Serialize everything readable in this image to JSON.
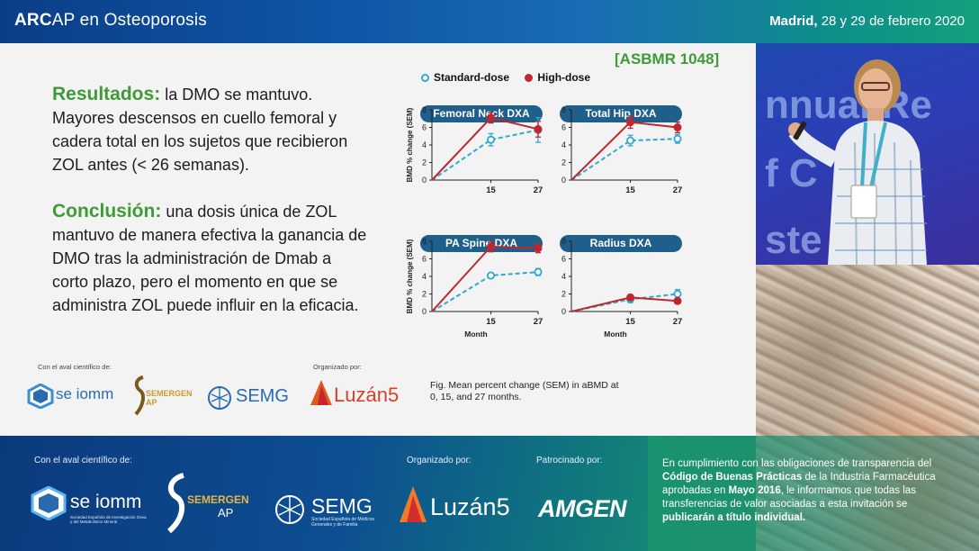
{
  "top_banner": {
    "title_bold": "ARC",
    "title_rest": "AP en Osteoporosis",
    "date_city": "Madrid,",
    "date_rest": " 28 y 29 de febrero 2020"
  },
  "slide": {
    "results_heading": "Resultados:",
    "results_text": " la DMO se mantuvo. Mayores descensos en cuello femoral y cadera total en los sujetos que recibieron ZOL antes (< 26 semanas).",
    "conclusion_heading": "Conclusión:",
    "conclusion_text": " una dosis única de ZOL mantuvo de manera efectiva la ganancia de DMO tras la administración de Dmab a corto plazo, pero el momento en que se administra ZOL puede influir en la eficacia.",
    "citation": "[ASBMR 1048]",
    "caption": "Fig. Mean percent change (SEM) in aBMD at 0, 15, and 27 months.",
    "logos_label_left": "Con el aval científico de:",
    "logos_label_right": "Organizado por:",
    "logo_seiomm": "se iomm",
    "logo_semergen": "SEMERGEN AP",
    "logo_semg": "SEMG",
    "logo_luzan": "Luzán5"
  },
  "chart_legend": {
    "standard": "Standard-dose",
    "high": "High-dose"
  },
  "chart_data": [
    {
      "type": "line",
      "title": "Femoral Neck DXA",
      "ylabel": "BMD % change (SEM)",
      "xlabel": "",
      "x": [
        0,
        15,
        27
      ],
      "x_ticks": [
        "15",
        "27"
      ],
      "y_ticks": [
        "0",
        "2",
        "4",
        "6",
        "8"
      ],
      "ylim": [
        0,
        8
      ],
      "series": [
        {
          "name": "Standard-dose",
          "values": [
            0,
            4.6,
            5.7
          ],
          "err": [
            0,
            0.7,
            1.4
          ],
          "color": "#2fa9cf"
        },
        {
          "name": "High-dose",
          "values": [
            0,
            7.1,
            5.8
          ],
          "err": [
            0,
            0.6,
            0.9
          ],
          "color": "#c0262e"
        }
      ]
    },
    {
      "type": "line",
      "title": "Total Hip DXA",
      "ylabel": "",
      "xlabel": "",
      "x": [
        0,
        15,
        27
      ],
      "x_ticks": [
        "15",
        "27"
      ],
      "y_ticks": [
        "0",
        "2",
        "4",
        "6",
        "8"
      ],
      "ylim": [
        0,
        8
      ],
      "series": [
        {
          "name": "Standard-dose",
          "values": [
            0,
            4.5,
            4.7
          ],
          "err": [
            0,
            0.6,
            0.5
          ],
          "color": "#2fa9cf"
        },
        {
          "name": "High-dose",
          "values": [
            0,
            6.6,
            6.0
          ],
          "err": [
            0,
            0.7,
            0.6
          ],
          "color": "#c0262e"
        }
      ]
    },
    {
      "type": "line",
      "title": "PA Spine DXA",
      "ylabel": "BMD % change (SEM)",
      "xlabel": "Month",
      "x": [
        0,
        15,
        27
      ],
      "x_ticks": [
        "15",
        "27"
      ],
      "y_ticks": [
        "0",
        "2",
        "4",
        "6",
        "8"
      ],
      "ylim": [
        0,
        8
      ],
      "series": [
        {
          "name": "Standard-dose",
          "values": [
            0,
            4.1,
            4.5
          ],
          "err": [
            0,
            0.3,
            0.4
          ],
          "color": "#2fa9cf"
        },
        {
          "name": "High-dose",
          "values": [
            0,
            7.4,
            7.2
          ],
          "err": [
            0,
            0.6,
            0.5
          ],
          "color": "#c0262e"
        }
      ]
    },
    {
      "type": "line",
      "title": "Radius DXA",
      "ylabel": "",
      "xlabel": "Month",
      "x": [
        0,
        15,
        27
      ],
      "x_ticks": [
        "15",
        "27"
      ],
      "y_ticks": [
        "0",
        "2",
        "4",
        "6",
        "8"
      ],
      "ylim": [
        0,
        8
      ],
      "series": [
        {
          "name": "Standard-dose",
          "values": [
            0,
            1.4,
            2.0
          ],
          "err": [
            0,
            0.4,
            0.5
          ],
          "color": "#2fa9cf"
        },
        {
          "name": "High-dose",
          "values": [
            0,
            1.6,
            1.2
          ],
          "err": [
            0,
            0.3,
            0.3
          ],
          "color": "#c0262e"
        }
      ]
    }
  ],
  "speaker_video": {
    "bg_word_1": "nnual Re",
    "bg_word_2": "f C",
    "bg_word_3": "ste   ro"
  },
  "footer": {
    "aval_label": "Con el aval científico de:",
    "organizado_label": "Organizado por:",
    "patrocinado_label": "Patrocinado por:",
    "logo_seiomm": "se iomm",
    "logo_seiomm_sub": "Sociedad Española de Investigación Ósea y del Metabolismo Mineral",
    "logo_semergen": "SEMERGEN",
    "logo_semergen_ap": "AP",
    "logo_semg": "SEMG",
    "logo_semg_sub": "Sociedad Española de Médicos Generales y de Familia",
    "logo_luzan": "Luzán5",
    "logo_amgen": "AMGEN",
    "note_1": "En cumplimiento con las obligaciones de transparencia del ",
    "note_bold_1": "Código de Buenas Prácticas",
    "note_2": " de la Industria Farmacéutica aprobadas en ",
    "note_bold_2": "Mayo 2016",
    "note_3": ", le informamos que todas las transferencias de valor asociadas a esta invitación se ",
    "note_bold_3": "publicarán a título individual."
  },
  "colors": {
    "standard": "#2fa9cf",
    "high": "#c0262e",
    "accent_green": "#3f9a37",
    "pill_blue": "#1f5f8b"
  }
}
